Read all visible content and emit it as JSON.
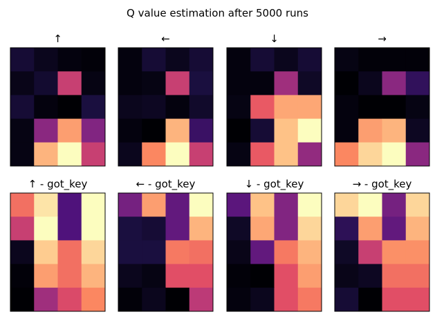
{
  "figure": {
    "title": "Q value estimation after 5000 runs",
    "colormap": "magma"
  },
  "chart_data": [
    {
      "type": "heatmap",
      "title": "↑",
      "rows": 5,
      "cols": 4,
      "values": [
        [
          0.1,
          0.05,
          0.02,
          0.01
        ],
        [
          0.04,
          0.09,
          0.55,
          0.03
        ],
        [
          0.1,
          0.02,
          0.0,
          0.12
        ],
        [
          0.03,
          0.4,
          0.8,
          0.38
        ],
        [
          0.03,
          0.85,
          1.0,
          0.55
        ]
      ]
    },
    {
      "type": "heatmap",
      "title": "←",
      "rows": 5,
      "cols": 4,
      "values": [
        [
          0.02,
          0.1,
          0.05,
          0.1
        ],
        [
          0.02,
          0.03,
          0.55,
          0.12
        ],
        [
          0.05,
          0.06,
          0.02,
          0.08
        ],
        [
          0.02,
          0.0,
          0.85,
          0.2
        ],
        [
          0.05,
          0.75,
          1.0,
          0.55
        ]
      ]
    },
    {
      "type": "heatmap",
      "title": "↓",
      "rows": 5,
      "cols": 4,
      "values": [
        [
          0.02,
          0.1,
          0.05,
          0.1
        ],
        [
          0.02,
          0.02,
          0.45,
          0.07
        ],
        [
          0.03,
          0.65,
          0.82,
          0.82
        ],
        [
          0.0,
          0.1,
          0.88,
          1.0
        ],
        [
          0.03,
          0.65,
          0.88,
          0.42
        ]
      ]
    },
    {
      "type": "heatmap",
      "title": "→",
      "rows": 5,
      "cols": 4,
      "values": [
        [
          0.03,
          0.01,
          0.01,
          0.01
        ],
        [
          0.0,
          0.05,
          0.4,
          0.18
        ],
        [
          0.02,
          0.0,
          0.0,
          0.03
        ],
        [
          0.02,
          0.8,
          0.85,
          0.06
        ],
        [
          0.75,
          0.92,
          1.0,
          0.4
        ]
      ]
    },
    {
      "type": "heatmap",
      "title": "↑ - got_key",
      "rows": 5,
      "cols": 4,
      "values": [
        [
          0.7,
          0.95,
          0.25,
          1.0
        ],
        [
          0.55,
          1.0,
          0.25,
          1.0
        ],
        [
          0.05,
          0.9,
          0.7,
          0.92
        ],
        [
          0.01,
          0.8,
          0.7,
          0.85
        ],
        [
          0.0,
          0.45,
          0.6,
          0.75
        ]
      ]
    },
    {
      "type": "heatmap",
      "title": "← - got_key",
      "rows": 5,
      "cols": 4,
      "values": [
        [
          0.35,
          0.8,
          0.3,
          1.0
        ],
        [
          0.12,
          0.1,
          0.3,
          0.85
        ],
        [
          0.12,
          0.12,
          0.72,
          0.7
        ],
        [
          0.05,
          0.03,
          0.62,
          0.62
        ],
        [
          0.01,
          0.05,
          0.0,
          0.52
        ]
      ]
    },
    {
      "type": "heatmap",
      "title": "↓ - got_key",
      "rows": 5,
      "cols": 4,
      "values": [
        [
          0.28,
          0.88,
          0.38,
          1.0
        ],
        [
          0.07,
          0.82,
          0.38,
          0.92
        ],
        [
          0.04,
          0.3,
          0.72,
          0.85
        ],
        [
          0.01,
          0.0,
          0.62,
          0.8
        ],
        [
          0.02,
          0.05,
          0.62,
          0.72
        ]
      ]
    },
    {
      "type": "heatmap",
      "title": "→ - got_key",
      "rows": 5,
      "cols": 4,
      "values": [
        [
          0.92,
          1.0,
          0.35,
          0.92
        ],
        [
          0.17,
          0.8,
          0.3,
          0.85
        ],
        [
          0.07,
          0.55,
          0.77,
          0.77
        ],
        [
          0.04,
          0.06,
          0.7,
          0.7
        ],
        [
          0.1,
          0.0,
          0.62,
          0.62
        ]
      ]
    }
  ]
}
